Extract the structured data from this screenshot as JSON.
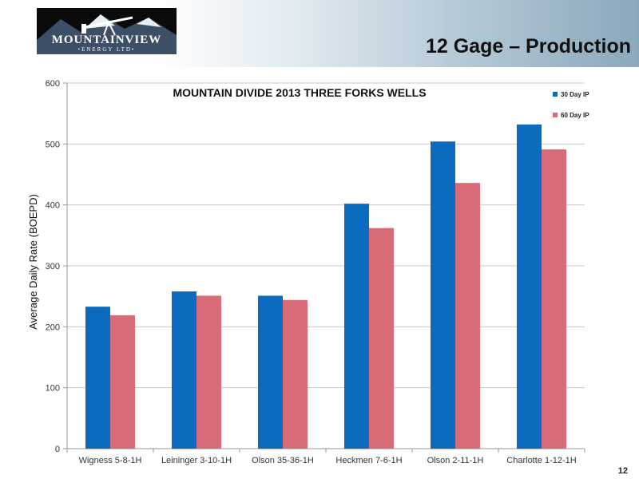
{
  "slide": {
    "logo_name": "MOUNTAINVIEW",
    "logo_sub": "•ENERGY LTD•",
    "title": "12 Gage – Production",
    "page_number": "12"
  },
  "chart_data": {
    "type": "bar",
    "title": "MOUNTAIN DIVIDE 2013 THREE FORKS WELLS",
    "xlabel": "",
    "ylabel": "Average Daily Rate (BOEPD)",
    "ylim": [
      0,
      600
    ],
    "yticks": [
      0,
      100,
      200,
      300,
      400,
      500,
      600
    ],
    "grid": true,
    "legend_position": "top-right",
    "categories": [
      "Wigness 5-8-1H",
      "Leininger 3-10-1H",
      "Olson 35-36-1H",
      "Heckmen 7-6-1H",
      "Olson 2-11-1H",
      "Charlotte 1-12-1H"
    ],
    "series": [
      {
        "name": "30 Day IP",
        "color": "#0b6cbf",
        "values": [
          233,
          258,
          251,
          402,
          504,
          532
        ]
      },
      {
        "name": "60 Day IP",
        "color": "#d96a78",
        "values": [
          219,
          251,
          244,
          362,
          436,
          491
        ]
      }
    ]
  }
}
